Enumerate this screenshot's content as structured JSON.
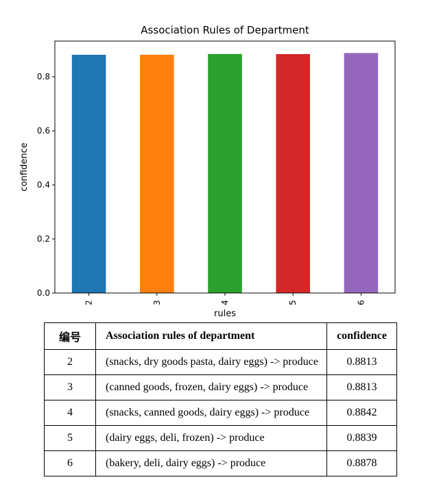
{
  "chart_data": {
    "type": "bar",
    "title": "Association Rules of Department",
    "xlabel": "rules",
    "ylabel": "confidence",
    "categories": [
      "2",
      "3",
      "4",
      "5",
      "6"
    ],
    "values": [
      0.8813,
      0.8813,
      0.8842,
      0.8839,
      0.8878
    ],
    "colors": [
      "#1f77b4",
      "#ff7f0e",
      "#2ca02c",
      "#d62728",
      "#9467bd"
    ],
    "ylim": [
      0,
      0.932
    ],
    "yticks": [
      0.0,
      0.2,
      0.4,
      0.6,
      0.8
    ],
    "ytick_labels": [
      "0.0",
      "0.2",
      "0.4",
      "0.6",
      "0.8"
    ],
    "grid": false
  },
  "table": {
    "headers": [
      "编号",
      "Association rules of department",
      "confidence"
    ],
    "rows": [
      [
        "2",
        "(snacks, dry goods pasta, dairy eggs) -> produce",
        "0.8813"
      ],
      [
        "3",
        "(canned goods, frozen, dairy eggs) -> produce",
        "0.8813"
      ],
      [
        "4",
        "(snacks, canned goods, dairy eggs) -> produce",
        "0.8842"
      ],
      [
        "5",
        "(dairy eggs, deli, frozen) -> produce",
        "0.8839"
      ],
      [
        "6",
        "(bakery, deli, dairy eggs) -> produce",
        "0.8878"
      ]
    ]
  }
}
